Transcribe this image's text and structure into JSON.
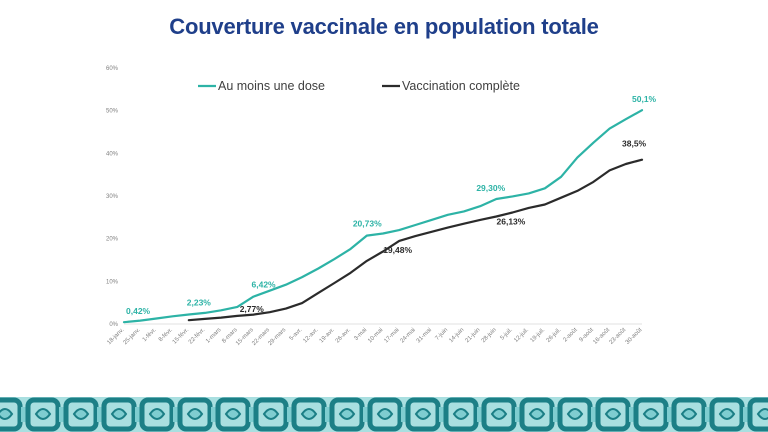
{
  "chart_data": {
    "type": "line",
    "title": "Couverture vaccinale en population totale",
    "ylim": [
      0,
      60
    ],
    "yticks": [
      0,
      10,
      20,
      30,
      40,
      50,
      60
    ],
    "ytick_labels": [
      "0%",
      "10%",
      "20%",
      "30%",
      "40%",
      "50%",
      "60%"
    ],
    "grid": false,
    "legend_position": "top",
    "x_labels": [
      "18-janv.",
      "25-janv.",
      "1-févr.",
      "8-févr.",
      "15-févr.",
      "22-févr.",
      "1-mars",
      "8-mars",
      "15-mars",
      "22-mars",
      "29-mars",
      "5-avr.",
      "12-avr.",
      "19-avr.",
      "26-avr.",
      "3-mai",
      "10-mai",
      "17-mai",
      "24-mai",
      "31-mai",
      "7-juin",
      "14-juin",
      "21-juin",
      "28-juin",
      "5-juil.",
      "12-juil.",
      "19-juil.",
      "26-juil.",
      "2-août",
      "9-août",
      "16-août",
      "23-août",
      "30-août"
    ],
    "series": [
      {
        "name": "Au moins une dose",
        "color": "#2db3a6",
        "x": [
          0,
          1,
          2,
          3,
          4,
          5,
          6,
          7,
          8,
          9,
          10,
          11,
          12,
          13,
          14,
          15,
          16,
          17,
          18,
          19,
          20,
          21,
          22,
          23,
          24,
          25,
          26,
          27,
          28,
          29,
          30,
          31,
          32
        ],
        "values": [
          0.42,
          0.8,
          1.3,
          1.8,
          2.23,
          2.6,
          3.2,
          4.0,
          6.42,
          7.8,
          9.2,
          11.0,
          13.0,
          15.2,
          17.6,
          20.73,
          21.2,
          22.0,
          23.2,
          24.4,
          25.6,
          26.4,
          27.6,
          29.3,
          29.9,
          30.6,
          31.8,
          34.5,
          39.0,
          42.5,
          45.8,
          48.0,
          50.1
        ]
      },
      {
        "name": "Vaccination complète",
        "color": "#2b2b2b",
        "x": [
          4,
          5,
          6,
          7,
          8,
          9,
          10,
          11,
          12,
          13,
          14,
          15,
          16,
          17,
          18,
          19,
          20,
          21,
          22,
          23,
          24,
          25,
          26,
          27,
          28,
          29,
          30,
          31,
          32
        ],
        "values": [
          0.9,
          1.2,
          1.5,
          1.9,
          2.2,
          2.77,
          3.6,
          4.9,
          7.3,
          9.6,
          12.0,
          14.8,
          17.0,
          19.48,
          20.6,
          21.6,
          22.6,
          23.5,
          24.4,
          25.2,
          26.13,
          27.2,
          28.0,
          29.6,
          31.2,
          33.3,
          36.0,
          37.5,
          38.5
        ]
      }
    ],
    "annotations": [
      {
        "series": 0,
        "index": 0,
        "text": "0,42%"
      },
      {
        "series": 0,
        "index": 4,
        "text": "2,23%"
      },
      {
        "series": 0,
        "index": 8,
        "text": "6,42%"
      },
      {
        "series": 0,
        "index": 15,
        "text": "20,73%"
      },
      {
        "series": 0,
        "index": 23,
        "text": "29,30%"
      },
      {
        "series": 0,
        "index": 32,
        "text": "50,1%"
      },
      {
        "series": 1,
        "index": 5,
        "text": "2,77%"
      },
      {
        "series": 1,
        "index": 13,
        "text": "19,48%"
      },
      {
        "series": 1,
        "index": 20,
        "text": "26,13%"
      },
      {
        "series": 1,
        "index": 28,
        "text": "38,5%"
      }
    ]
  },
  "footer": {
    "pattern_color": "#1c7f86",
    "pattern_light": "#7fcdd0",
    "background": "#a9dfe0"
  }
}
